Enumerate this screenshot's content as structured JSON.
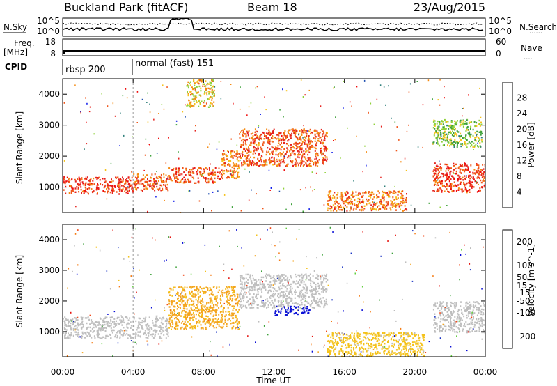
{
  "header": {
    "title": "Buckland Park (fitACF)",
    "beam": "Beam 18",
    "date": "23/Aug/2015"
  },
  "strips": {
    "nsky_label": "N.Sky",
    "nsearch_label": "N.Search",
    "nsky_ticks": [
      "10^5",
      "10^0"
    ],
    "nsearch_ticks": [
      "10^5",
      "10^0"
    ],
    "freq_label": [
      "Freq.",
      "[MHz]"
    ],
    "freq_ticks": [
      "18",
      "8"
    ],
    "nave_label": "Nave",
    "nave_ticks": [
      "60",
      "0"
    ],
    "cpid_label": "CPID",
    "cpid_segments": [
      "rbsp 200",
      "normal (fast) 151"
    ],
    "dotted_marker": "......",
    "nave_marker": "...."
  },
  "colors": {
    "power_scale": [
      "#0a17ea",
      "#1f4fb0",
      "#2f7f7a",
      "#3ea13a",
      "#8fd13a",
      "#f6c21b",
      "#f58a11",
      "#f0561a",
      "#e5231e",
      "#ef0b0b"
    ],
    "velocity_scale": [
      "#e5130e",
      "#f24a1a",
      "#f57b12",
      "#f4a51f",
      "#f4c21a",
      "#bfbfbf",
      "#bdbdbd",
      "#63cf3f",
      "#3ea13a",
      "#1a34c4",
      "#0a0fd6"
    ],
    "ground_scatter": "#bcbcbc"
  },
  "chart_data": [
    {
      "type": "heatmap",
      "panel": "power",
      "ylabel": "Slant Range [km]",
      "xlabel": "Time UT",
      "xlim": [
        "00:00",
        "24:00"
      ],
      "ylim": [
        180,
        4500
      ],
      "x_ticks": [
        "00:00",
        "04:00",
        "08:00",
        "12:00",
        "16:00",
        "20:00",
        "00:00"
      ],
      "y_ticks": [
        1000,
        2000,
        3000,
        4000
      ],
      "colorbar_label": "Power [dB]",
      "colorbar_ticks": [
        4,
        8,
        12,
        16,
        20,
        24,
        28
      ],
      "colorbar_range": [
        0,
        32
      ],
      "features": [
        {
          "t_start": 0.0,
          "t_end": 4.0,
          "r_start": 800,
          "r_end": 1350,
          "value": 26
        },
        {
          "t_start": 4.0,
          "t_end": 6.0,
          "r_start": 900,
          "r_end": 1450,
          "value": 24
        },
        {
          "t_start": 6.0,
          "t_end": 9.0,
          "r_start": 1150,
          "r_end": 1650,
          "value": 25
        },
        {
          "t_start": 9.0,
          "t_end": 10.0,
          "r_start": 1300,
          "r_end": 2200,
          "value": 22
        },
        {
          "t_start": 10.0,
          "t_end": 15.0,
          "r_start": 1700,
          "r_end": 2900,
          "value": 24
        },
        {
          "t_start": 15.0,
          "t_end": 19.5,
          "r_start": 250,
          "r_end": 900,
          "value": 22
        },
        {
          "t_start": 21.0,
          "t_end": 24.0,
          "r_start": 850,
          "r_end": 1800,
          "value": 26
        },
        {
          "t_start": 7.0,
          "t_end": 8.6,
          "r_start": 3600,
          "r_end": 4500,
          "value": 18
        },
        {
          "t_start": 21.0,
          "t_end": 23.8,
          "r_start": 2300,
          "r_end": 3200,
          "value": 14
        }
      ]
    },
    {
      "type": "heatmap",
      "panel": "velocity",
      "ylabel": "Slant Range [km]",
      "xlabel": "Time UT",
      "xlim": [
        "00:00",
        "24:00"
      ],
      "ylim": [
        180,
        4500
      ],
      "x_ticks": [
        "00:00",
        "04:00",
        "08:00",
        "12:00",
        "16:00",
        "20:00",
        "00:00"
      ],
      "y_ticks": [
        1000,
        2000,
        3000,
        4000
      ],
      "colorbar_label": "Velocity [m s^-1]",
      "colorbar_ticks": [
        -200,
        -100,
        -50,
        -15,
        15,
        50,
        100,
        200
      ],
      "colorbar_range": [
        -250,
        250
      ],
      "features": [
        {
          "t_start": 0.0,
          "t_end": 6.0,
          "r_start": 800,
          "r_end": 1500,
          "value": 0
        },
        {
          "t_start": 6.0,
          "t_end": 10.0,
          "r_start": 1100,
          "r_end": 2500,
          "value": -80
        },
        {
          "t_start": 10.0,
          "t_end": 15.0,
          "r_start": 1800,
          "r_end": 2900,
          "value": 0
        },
        {
          "t_start": 12.0,
          "t_end": 14.0,
          "r_start": 1550,
          "r_end": 1850,
          "value": 220
        },
        {
          "t_start": 15.0,
          "t_end": 20.5,
          "r_start": 200,
          "r_end": 1000,
          "value": -40
        },
        {
          "t_start": 21.0,
          "t_end": 24.0,
          "r_start": 1000,
          "r_end": 2000,
          "value": 30
        }
      ]
    }
  ]
}
